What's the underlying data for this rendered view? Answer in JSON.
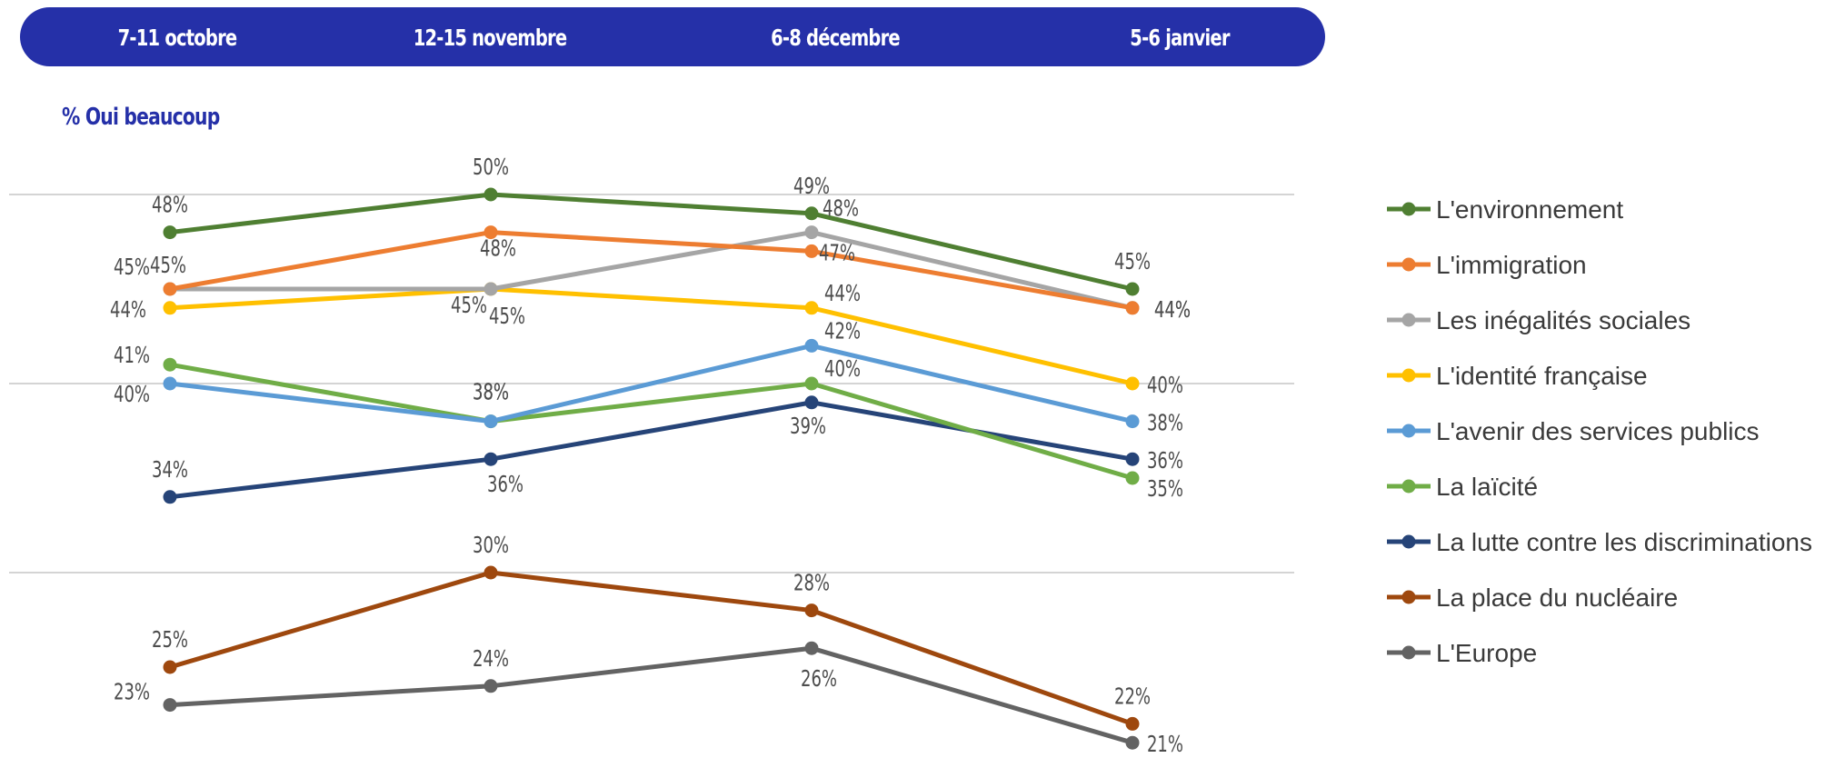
{
  "chart_data": {
    "type": "line",
    "title": "",
    "ylabel": "% Oui beaucoup",
    "categories": [
      "7-11 octobre",
      "12-15 novembre",
      "6-8 décembre",
      "5-6 janvier"
    ],
    "ylim": [
      18,
      52
    ],
    "grid": true,
    "legend_position": "right",
    "series": [
      {
        "name": "L'environnement",
        "color": "#4f7f32",
        "values": [
          48,
          50,
          49,
          45
        ]
      },
      {
        "name": "L'immigration",
        "color": "#ed7d31",
        "values": [
          45,
          48,
          47,
          44
        ]
      },
      {
        "name": "Les inégalités sociales",
        "color": "#a5a5a5",
        "values": [
          45,
          45,
          48,
          44
        ]
      },
      {
        "name": "L'identité française",
        "color": "#ffc000",
        "values": [
          44,
          45,
          44,
          40
        ]
      },
      {
        "name": "L'avenir des services publics",
        "color": "#5b9bd5",
        "values": [
          40,
          38,
          42,
          38
        ]
      },
      {
        "name": "La laïcité",
        "color": "#70ad47",
        "values": [
          41,
          38,
          40,
          35
        ]
      },
      {
        "name": "La lutte contre les discriminations",
        "color": "#264478",
        "values": [
          34,
          36,
          39,
          36
        ]
      },
      {
        "name": "La place du nucléaire",
        "color": "#9e480e",
        "values": [
          25,
          30,
          28,
          22
        ]
      },
      {
        "name": "L'Europe",
        "color": "#636363",
        "values": [
          23,
          24,
          26,
          21
        ]
      }
    ]
  }
}
